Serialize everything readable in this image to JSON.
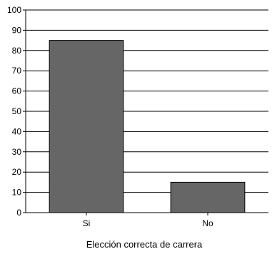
{
  "chart_data": {
    "type": "bar",
    "title": "",
    "xlabel": "Elección correcta de carrera",
    "ylabel": "",
    "categories": [
      "Si",
      "No"
    ],
    "values": [
      85,
      15
    ],
    "ylim": [
      0,
      100
    ],
    "yticks": [
      0,
      10,
      20,
      30,
      40,
      50,
      60,
      70,
      80,
      90,
      100
    ],
    "grid": true,
    "bar_color": "#666666",
    "grid_color": "#000000"
  }
}
